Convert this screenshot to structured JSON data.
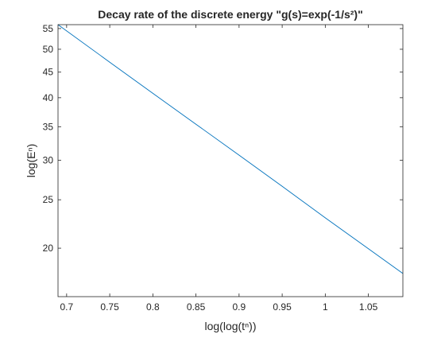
{
  "chart_data": {
    "type": "line",
    "title": "Decay rate of the discrete energy  \"g(s)=exp(-1/s²)\"",
    "xlabel": "log(log(tⁿ))",
    "ylabel": "log(Eⁿ)",
    "xscale": "linear",
    "yscale": "log",
    "xlim": [
      0.69,
      1.09
    ],
    "ylim": [
      16,
      56
    ],
    "xticks": [
      0.7,
      0.75,
      0.8,
      0.85,
      0.9,
      0.95,
      1,
      1.05
    ],
    "xtick_labels": [
      "0.7",
      "0.75",
      "0.8",
      "0.85",
      "0.9",
      "0.95",
      "1",
      "1.05"
    ],
    "yticks": [
      20,
      25,
      30,
      35,
      40,
      45,
      50,
      55
    ],
    "ytick_labels": [
      "20",
      "25",
      "30",
      "35",
      "40",
      "45",
      "50",
      "55"
    ],
    "grid": false,
    "box": true,
    "series": [
      {
        "color": "#0072BD",
        "x": [
          0.69,
          0.75,
          0.8,
          0.85,
          0.9,
          0.95,
          1.0,
          1.05,
          1.09
        ],
        "y": [
          56,
          47.1,
          40.8,
          35.4,
          30.7,
          26.6,
          23.0,
          19.95,
          17.8
        ]
      }
    ]
  }
}
